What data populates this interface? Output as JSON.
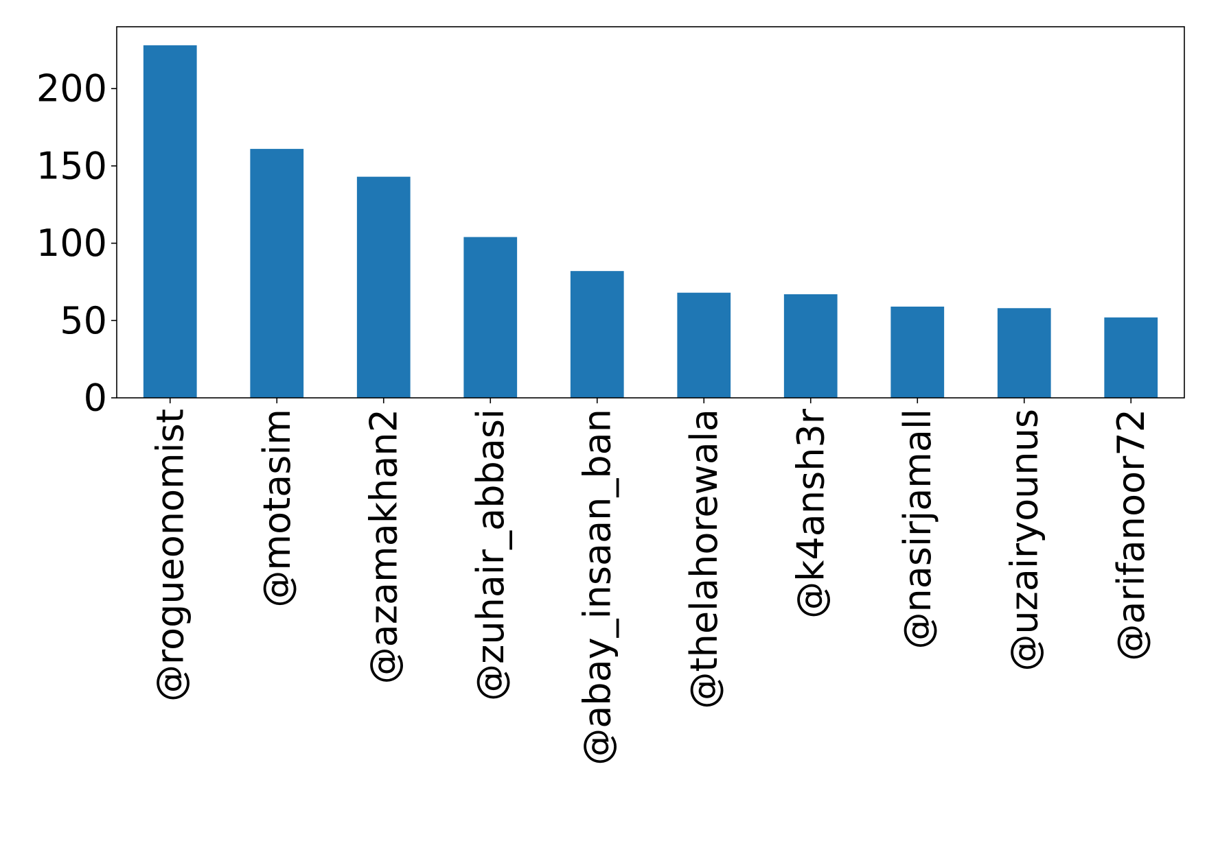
{
  "chart_data": {
    "type": "bar",
    "title": "",
    "xlabel": "",
    "ylabel": "",
    "categories": [
      "@rogueonomist",
      "@motasim",
      "@azamakhan2",
      "@zuhair_abbasi",
      "@abay_insaan_ban",
      "@thelahorewala",
      "@k4ansh3r",
      "@nasirjamall",
      "@uzairyounus",
      "@arifanoor72"
    ],
    "values": [
      228,
      161,
      143,
      104,
      82,
      68,
      67,
      59,
      58,
      52
    ],
    "ylim": [
      0,
      240
    ],
    "yticks": [
      0,
      50,
      100,
      150,
      200
    ],
    "grid": false,
    "legend": "none",
    "colors": {
      "bar": "#1f77b4",
      "axis": "#000000",
      "background": "#ffffff"
    }
  }
}
